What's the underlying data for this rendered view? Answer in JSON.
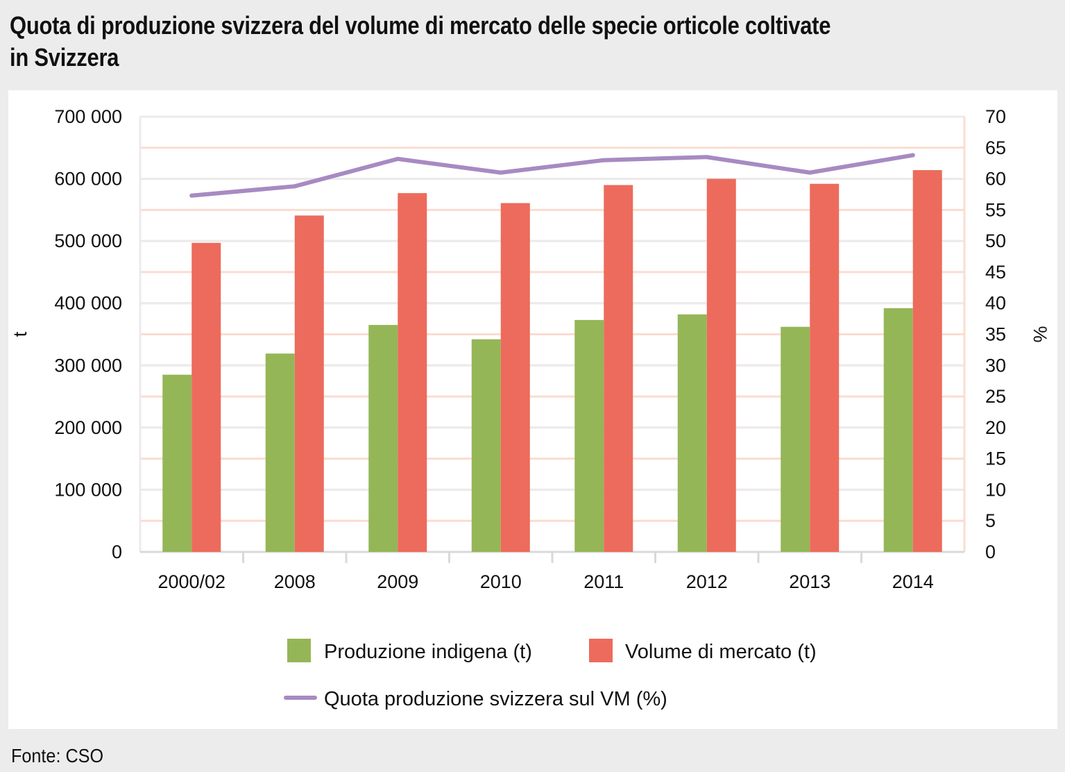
{
  "title_lines": [
    "Quota di produzione svizzera del volume di mercato delle specie orticole coltivate",
    "in Svizzera"
  ],
  "source": "Fonte: CSO",
  "colors": {
    "produzione": "#95b657",
    "volume": "#ec6b5c",
    "quota": "#a78ac2",
    "grid_left": "#ebebeb",
    "grid_right": "#fbdccf"
  },
  "chart_data": {
    "type": "bar",
    "categories": [
      "2000/02",
      "2008",
      "2009",
      "2010",
      "2011",
      "2012",
      "2013",
      "2014"
    ],
    "series": [
      {
        "name": "Produzione indigena (t)",
        "axis": "left",
        "type": "bar",
        "values": [
          285000,
          319000,
          365000,
          342000,
          373000,
          382000,
          362000,
          392000
        ]
      },
      {
        "name": "Volume di mercato (t)",
        "axis": "left",
        "type": "bar",
        "values": [
          497000,
          541000,
          577000,
          561000,
          590000,
          600000,
          592000,
          614000
        ]
      },
      {
        "name": "Quota produzione svizzera sul VM (%)",
        "axis": "right",
        "type": "line",
        "values": [
          57.3,
          58.8,
          63.2,
          61.0,
          63.0,
          63.5,
          61.0,
          63.8
        ]
      }
    ],
    "ylabel": "t",
    "y2label": "%",
    "ylim": [
      0,
      700000
    ],
    "y2lim": [
      0,
      70
    ],
    "yticks": [
      0,
      100000,
      200000,
      300000,
      400000,
      500000,
      600000,
      700000
    ],
    "ytick_labels": [
      "0",
      "100 000",
      "200 000",
      "300 000",
      "400 000",
      "500 000",
      "600 000",
      "700 000"
    ],
    "y2ticks": [
      0,
      5,
      10,
      15,
      20,
      25,
      30,
      35,
      40,
      45,
      50,
      55,
      60,
      65,
      70
    ],
    "y2tick_labels": [
      "0",
      "5",
      "10",
      "15",
      "20",
      "25",
      "30",
      "35",
      "40",
      "45",
      "50",
      "55",
      "60",
      "65",
      "70"
    ],
    "legend": {
      "placement": "bottom",
      "entries": [
        {
          "label": "Produzione indigena (t)",
          "kind": "box",
          "color": "#95b657"
        },
        {
          "label": "Volume di mercato (t)",
          "kind": "box",
          "color": "#ec6b5c"
        },
        {
          "label": "Quota produzione svizzera sul VM (%)",
          "kind": "line",
          "color": "#a78ac2"
        }
      ]
    }
  }
}
